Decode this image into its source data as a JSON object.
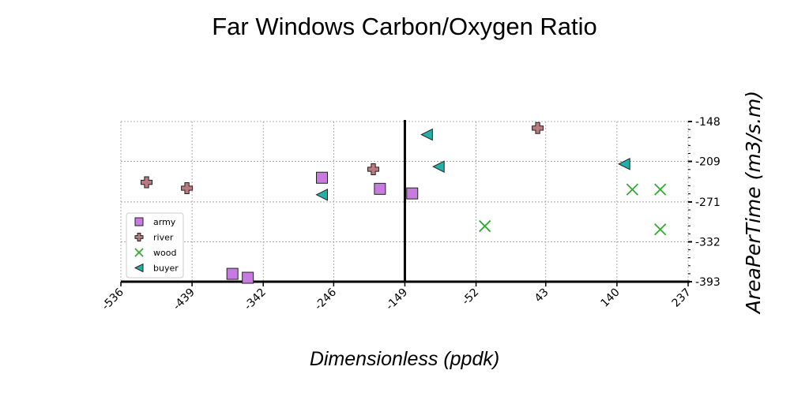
{
  "chart_data": {
    "type": "scatter",
    "title": "Far Windows Carbon/Oxygen Ratio",
    "xlabel": "Dimensionless (ppdk)",
    "ylabel": "AreaPerTime (m3/s.m)",
    "xlim": [
      -536,
      237
    ],
    "ylim": [
      -393,
      -148
    ],
    "y_axis_inverted": true,
    "y_axis_position": "right",
    "xticks": [
      -536,
      -439,
      -342,
      -246,
      -149,
      -52,
      43,
      140,
      237
    ],
    "yticks": [
      -148,
      -209,
      -271,
      -332,
      -393
    ],
    "vline_at": -149,
    "grid": true,
    "legend_position": "left",
    "series": [
      {
        "name": "army",
        "marker": "square",
        "color": "#c77be0",
        "points": [
          [
            -262,
            -234
          ],
          [
            -183,
            -251
          ],
          [
            -139,
            -258
          ],
          [
            -384,
            -381
          ],
          [
            -363,
            -387
          ]
        ]
      },
      {
        "name": "river",
        "marker": "plus",
        "color": "#b87b80",
        "points": [
          [
            -501,
            -241
          ],
          [
            -446,
            -250
          ],
          [
            -192,
            -221
          ],
          [
            32,
            -158
          ]
        ]
      },
      {
        "name": "wood",
        "marker": "x",
        "color": "#33aa33",
        "points": [
          [
            -40,
            -308
          ],
          [
            161,
            -252
          ],
          [
            199,
            -252
          ],
          [
            199,
            -313
          ]
        ]
      },
      {
        "name": "buyer",
        "marker": "triangle-left",
        "color": "#22b0a8",
        "points": [
          [
            -119,
            -168
          ],
          [
            -103,
            -217
          ],
          [
            -262,
            -260
          ],
          [
            150,
            -213
          ]
        ]
      }
    ]
  }
}
